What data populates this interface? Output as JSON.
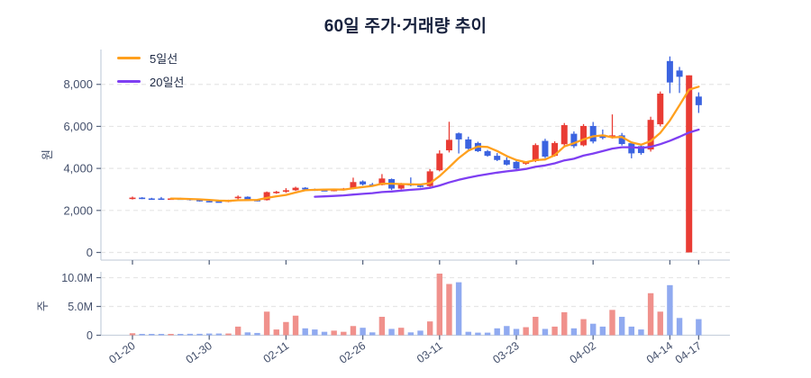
{
  "title": "60일 주가·거래량 추이",
  "legend": {
    "items": [
      {
        "label": "5일선",
        "color": "#ffa01e"
      },
      {
        "label": "20일선",
        "color": "#7e3ff2"
      }
    ]
  },
  "price_axis": {
    "title": "원",
    "tick_labels": [
      "0",
      "2,000",
      "4,000",
      "6,000",
      "8,000"
    ],
    "tick_values": [
      0,
      2000,
      4000,
      6000,
      8000
    ]
  },
  "volume_axis": {
    "title": "주",
    "tick_labels": [
      "0",
      "5.0M",
      "10.0M"
    ],
    "tick_values": [
      0,
      5000000,
      10000000
    ]
  },
  "chart_data": {
    "type": "candlestick+volume",
    "title": "60일 주가·거래량 추이",
    "ylabel_price": "원",
    "ylabel_volume": "주",
    "ylim_price": [
      0,
      9600
    ],
    "ylim_volume_M": [
      0,
      11.2
    ],
    "grid": true,
    "legend_position": "top-left",
    "ma_windows": {
      "ma5": 5,
      "ma20": 20
    },
    "x_tick_labels": [
      {
        "index": 0,
        "label": "01-20"
      },
      {
        "index": 8,
        "label": "01-30"
      },
      {
        "index": 16,
        "label": "02-11"
      },
      {
        "index": 24,
        "label": "02-26"
      },
      {
        "index": 32,
        "label": "03-11"
      },
      {
        "index": 40,
        "label": "03-23"
      },
      {
        "index": 48,
        "label": "04-02"
      },
      {
        "index": 56,
        "label": "04-14"
      },
      {
        "index": 59,
        "label": "04-17"
      }
    ],
    "colors": {
      "candle_up": "#e93c34",
      "candle_down": "#3b63e0",
      "volume_up": "#f0918c",
      "volume_down": "#90aaf0",
      "ma5": "#ffa01e",
      "ma20": "#7e3ff2",
      "grid": "#e6e6e6",
      "spine": "#c9d2de",
      "tick_text": "#434f6b",
      "title_text": "#17213d"
    },
    "candles_ohlc": [
      [
        2570,
        2660,
        2520,
        2610
      ],
      [
        2610,
        2630,
        2540,
        2560
      ],
      [
        2570,
        2600,
        2520,
        2540
      ],
      [
        2570,
        2640,
        2520,
        2550
      ],
      [
        2550,
        2590,
        2530,
        2570
      ],
      [
        2570,
        2600,
        2540,
        2560
      ],
      [
        2560,
        2580,
        2470,
        2500
      ],
      [
        2500,
        2530,
        2420,
        2450
      ],
      [
        2450,
        2490,
        2390,
        2420
      ],
      [
        2430,
        2480,
        2380,
        2410
      ],
      [
        2410,
        2510,
        2390,
        2490
      ],
      [
        2590,
        2710,
        2530,
        2650
      ],
      [
        2650,
        2670,
        2450,
        2490
      ],
      [
        2500,
        2540,
        2430,
        2470
      ],
      [
        2490,
        2900,
        2470,
        2870
      ],
      [
        2870,
        2930,
        2790,
        2890
      ],
      [
        2890,
        3060,
        2840,
        2960
      ],
      [
        2960,
        3130,
        2930,
        3080
      ],
      [
        3080,
        3110,
        2950,
        3000
      ],
      [
        3000,
        3040,
        2930,
        2970
      ],
      [
        2970,
        3010,
        2920,
        2950
      ],
      [
        2950,
        3010,
        2910,
        2985
      ],
      [
        2985,
        3070,
        2950,
        3045
      ],
      [
        3045,
        3560,
        3010,
        3350
      ],
      [
        3380,
        3430,
        3190,
        3240
      ],
      [
        3240,
        3310,
        3170,
        3205
      ],
      [
        3210,
        3730,
        3190,
        3520
      ],
      [
        3490,
        3520,
        2970,
        3040
      ],
      [
        3040,
        3310,
        3000,
        3265
      ],
      [
        3265,
        3570,
        3150,
        3185
      ],
      [
        3185,
        3270,
        3090,
        3150
      ],
      [
        3160,
        3970,
        3130,
        3860
      ],
      [
        3910,
        4860,
        3860,
        4710
      ],
      [
        4860,
        6220,
        4760,
        5360
      ],
      [
        5670,
        5710,
        4710,
        5380
      ],
      [
        5380,
        5510,
        4900,
        4940
      ],
      [
        5210,
        5270,
        4780,
        4820
      ],
      [
        4820,
        4880,
        4560,
        4600
      ],
      [
        4600,
        4730,
        4350,
        4400
      ],
      [
        4400,
        4530,
        4140,
        4180
      ],
      [
        4310,
        4390,
        3920,
        3990
      ],
      [
        4280,
        4340,
        4170,
        4290
      ],
      [
        4350,
        5190,
        4300,
        5110
      ],
      [
        5310,
        5410,
        4490,
        4560
      ],
      [
        4600,
        5290,
        4560,
        5210
      ],
      [
        5150,
        6160,
        5040,
        6060
      ],
      [
        5650,
        5760,
        4970,
        5060
      ],
      [
        5100,
        6110,
        5050,
        6020
      ],
      [
        6020,
        6210,
        5190,
        5280
      ],
      [
        5600,
        5850,
        5380,
        5450
      ],
      [
        5500,
        6570,
        5420,
        5575
      ],
      [
        5575,
        5690,
        5090,
        5160
      ],
      [
        5200,
        5290,
        4480,
        4715
      ],
      [
        5060,
        5170,
        4650,
        4730
      ],
      [
        4900,
        6460,
        4800,
        6310
      ],
      [
        6100,
        7660,
        6000,
        7560
      ],
      [
        9110,
        9330,
        7580,
        8090
      ],
      [
        8660,
        8830,
        7590,
        8360
      ],
      [
        0,
        8430,
        0,
        8430
      ],
      [
        7420,
        7620,
        6640,
        7010
      ]
    ],
    "volumes_M": [
      0.35,
      0.2,
      0.2,
      0.2,
      0.2,
      0.2,
      0.25,
      0.25,
      0.3,
      0.3,
      0.3,
      1.5,
      0.5,
      0.4,
      4.1,
      1.0,
      2.3,
      3.4,
      1.2,
      1.0,
      0.6,
      0.8,
      0.6,
      1.6,
      1.3,
      0.5,
      3.2,
      1.1,
      1.3,
      0.5,
      0.8,
      2.4,
      10.7,
      8.9,
      9.2,
      0.6,
      0.45,
      0.45,
      1.2,
      1.6,
      1.1,
      1.4,
      3.2,
      1.1,
      1.5,
      4.0,
      1.2,
      2.8,
      2.0,
      1.5,
      4.4,
      3.2,
      1.5,
      1.0,
      7.3,
      4.1,
      8.7,
      3.0,
      0.0,
      2.8
    ]
  }
}
